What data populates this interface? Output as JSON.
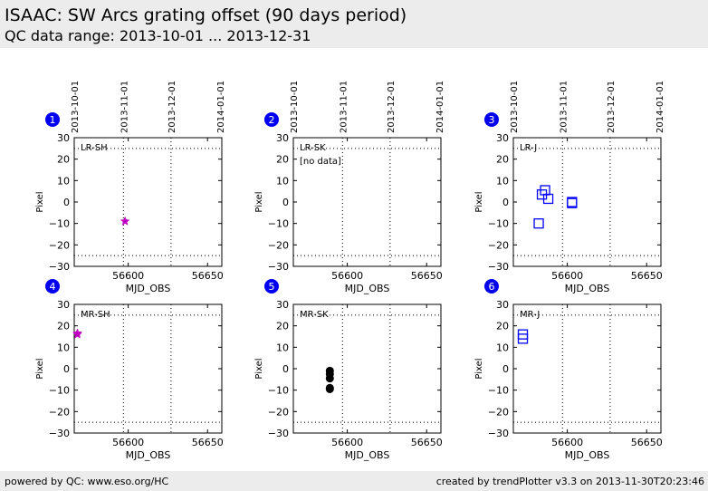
{
  "header": {
    "title": "ISAAC: SW Arcs grating offset (90 days period)",
    "subtitle": "QC data range: 2013-10-01 ... 2013-12-31"
  },
  "footer": {
    "left": "powered by QC: www.eso.org/HC",
    "right": "created by trendPlotter v3.3 on 2013-11-30T20:23:46"
  },
  "colors": {
    "header_bg": "#ececec",
    "badge": "#0000ee",
    "star": "#bf00bf",
    "square": "#0000ff",
    "dot": "#000000"
  },
  "chart_data": [
    {
      "type": "scatter",
      "number": "1",
      "label": "LR-SH",
      "marker": "star",
      "color": "#bf00bf",
      "xlabel": "MJD_OBS",
      "ylabel": "Pixel",
      "xlim": [
        56566,
        56659
      ],
      "ylim": [
        -30,
        30
      ],
      "xticks": [
        56600,
        56650
      ],
      "yticks": [
        30,
        20,
        10,
        0,
        -10,
        -20,
        -30
      ],
      "date_ticks": [
        {
          "label": "2013-10-01",
          "mjd": 56566
        },
        {
          "label": "2013-11-01",
          "mjd": 56597
        },
        {
          "label": "2013-12-01",
          "mjd": 56627
        },
        {
          "label": "2014-01-01",
          "mjd": 56658
        }
      ],
      "hlines": [
        25,
        -25
      ],
      "vlines": [
        56597,
        56627
      ],
      "points": [
        {
          "x": 56598,
          "y": -9
        }
      ]
    },
    {
      "type": "scatter",
      "number": "2",
      "label": "LR-SK",
      "note": "[no data]",
      "marker": "none",
      "color": "#000000",
      "xlabel": "MJD_OBS",
      "ylabel": "Pixel",
      "xlim": [
        56566,
        56659
      ],
      "ylim": [
        -30,
        30
      ],
      "xticks": [
        56600,
        56650
      ],
      "yticks": [
        30,
        20,
        10,
        0,
        -10,
        -20,
        -30
      ],
      "date_ticks": [
        {
          "label": "2013-10-01",
          "mjd": 56566
        },
        {
          "label": "2013-11-01",
          "mjd": 56597
        },
        {
          "label": "2013-12-01",
          "mjd": 56627
        },
        {
          "label": "2014-01-01",
          "mjd": 56658
        }
      ],
      "hlines": [
        25,
        -25
      ],
      "vlines": [
        56597,
        56627
      ],
      "points": []
    },
    {
      "type": "scatter",
      "number": "3",
      "label": "LR-J",
      "marker": "square",
      "color": "#0000ff",
      "xlabel": "MJD_OBS",
      "ylabel": "Pixel",
      "xlim": [
        56566,
        56659
      ],
      "ylim": [
        -30,
        30
      ],
      "xticks": [
        56600,
        56650
      ],
      "yticks": [
        30,
        20,
        10,
        0,
        -10,
        -20,
        -30
      ],
      "date_ticks": [
        {
          "label": "2013-10-01",
          "mjd": 56566
        },
        {
          "label": "2013-11-01",
          "mjd": 56597
        },
        {
          "label": "2013-12-01",
          "mjd": 56627
        },
        {
          "label": "2014-01-01",
          "mjd": 56658
        }
      ],
      "hlines": [
        25,
        -25
      ],
      "vlines": [
        56597,
        56627
      ],
      "points": [
        {
          "x": 56584,
          "y": 3.5
        },
        {
          "x": 56586,
          "y": 5.5
        },
        {
          "x": 56588,
          "y": 1.5
        },
        {
          "x": 56582,
          "y": -10
        },
        {
          "x": 56603,
          "y": 0
        },
        {
          "x": 56603,
          "y": -0.5
        }
      ]
    },
    {
      "type": "scatter",
      "number": "4",
      "label": "MR-SH",
      "marker": "star",
      "color": "#bf00bf",
      "xlabel": "MJD_OBS",
      "ylabel": "Pixel",
      "xlim": [
        56566,
        56659
      ],
      "ylim": [
        -30,
        30
      ],
      "xticks": [
        56600,
        56650
      ],
      "yticks": [
        30,
        20,
        10,
        0,
        -10,
        -20,
        -30
      ],
      "date_ticks": [],
      "hlines": [
        25,
        -25
      ],
      "vlines": [
        56597,
        56627
      ],
      "points": [
        {
          "x": 56568,
          "y": 16
        },
        {
          "x": 56568,
          "y": 16.5
        }
      ]
    },
    {
      "type": "scatter",
      "number": "5",
      "label": "MR-SK",
      "marker": "dot",
      "color": "#000000",
      "xlabel": "MJD_OBS",
      "ylabel": "Pixel",
      "xlim": [
        56566,
        56659
      ],
      "ylim": [
        -30,
        30
      ],
      "xticks": [
        56600,
        56650
      ],
      "yticks": [
        30,
        20,
        10,
        0,
        -10,
        -20,
        -30
      ],
      "date_ticks": [],
      "hlines": [
        25,
        -25
      ],
      "vlines": [
        56597,
        56627
      ],
      "points": [
        {
          "x": 56589,
          "y": -1
        },
        {
          "x": 56589,
          "y": -2.5
        },
        {
          "x": 56589,
          "y": -4.5
        },
        {
          "x": 56589,
          "y": -9
        },
        {
          "x": 56589,
          "y": -9.5
        }
      ]
    },
    {
      "type": "scatter",
      "number": "6",
      "label": "MR-J",
      "marker": "square",
      "color": "#0000ff",
      "xlabel": "MJD_OBS",
      "ylabel": "Pixel",
      "xlim": [
        56566,
        56659
      ],
      "ylim": [
        -30,
        30
      ],
      "xticks": [
        56600,
        56650
      ],
      "yticks": [
        30,
        20,
        10,
        0,
        -10,
        -20,
        -30
      ],
      "date_ticks": [],
      "hlines": [
        25,
        -25
      ],
      "vlines": [
        56597,
        56627
      ],
      "points": [
        {
          "x": 56572,
          "y": 16
        },
        {
          "x": 56572,
          "y": 14
        }
      ]
    }
  ]
}
